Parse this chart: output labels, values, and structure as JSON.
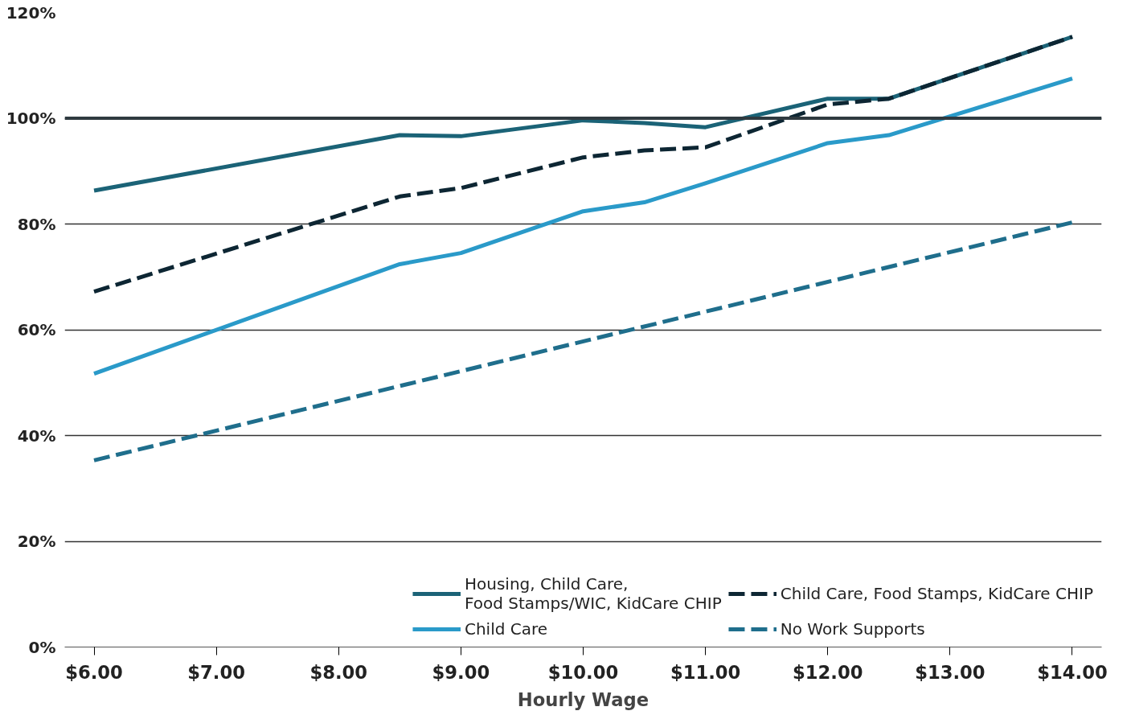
{
  "chart_data": {
    "type": "line",
    "xlabel": "Hourly Wage",
    "xlim": [
      5.76,
      14.24
    ],
    "xticks": [
      {
        "value": 6,
        "label": "$6.00"
      },
      {
        "value": 7,
        "label": "$7.00"
      },
      {
        "value": 8,
        "label": "$8.00"
      },
      {
        "value": 9,
        "label": "$9.00"
      },
      {
        "value": 10,
        "label": "$10.00"
      },
      {
        "value": 11,
        "label": "$11.00"
      },
      {
        "value": 12,
        "label": "$12.00"
      },
      {
        "value": 13,
        "label": "$13.00"
      },
      {
        "value": 14,
        "label": "$14.00"
      }
    ],
    "ylim": [
      0,
      120
    ],
    "yticks": [
      {
        "value": 0,
        "label": "0%"
      },
      {
        "value": 20,
        "label": "20%"
      },
      {
        "value": 40,
        "label": "40%"
      },
      {
        "value": 60,
        "label": "60%"
      },
      {
        "value": 80,
        "label": "80%"
      },
      {
        "value": 100,
        "label": "100%"
      },
      {
        "value": 120,
        "label": "120%"
      }
    ],
    "x": [
      6,
      8.5,
      9,
      10,
      10.5,
      11,
      12,
      12.5,
      14
    ],
    "series": [
      {
        "name": "Housing, Child Care,\nFood Stamps/WIC, KidCare CHIP",
        "color": "#1b6377",
        "line_style": "solid",
        "values": [
          86.3,
          96.8,
          96.6,
          99.6,
          99.1,
          98.3,
          103.7,
          103.7,
          115.4
        ]
      },
      {
        "name": "Child Care",
        "color": "#2a9ac9",
        "line_style": "solid",
        "values": [
          51.7,
          72.4,
          74.5,
          82.4,
          84.1,
          87.7,
          95.3,
          96.8,
          107.5
        ]
      },
      {
        "name": "Child Care, Food Stamps, KidCare CHIP",
        "color": "#0d2633",
        "line_style": "dashed",
        "values": [
          67.2,
          85.2,
          86.8,
          92.6,
          93.9,
          94.5,
          102.6,
          103.7,
          115.4
        ]
      },
      {
        "name": "No Work Supports",
        "color": "#1f6e8c",
        "line_style": "dashed",
        "x": [
          6,
          14
        ],
        "values": [
          35.3,
          80.3
        ]
      }
    ],
    "ref_lines": [
      {
        "axis": "y",
        "value": 100,
        "label": null,
        "color": "#2f3a40"
      }
    ],
    "grid": "y",
    "legend": "bottom right",
    "marker": "none"
  }
}
